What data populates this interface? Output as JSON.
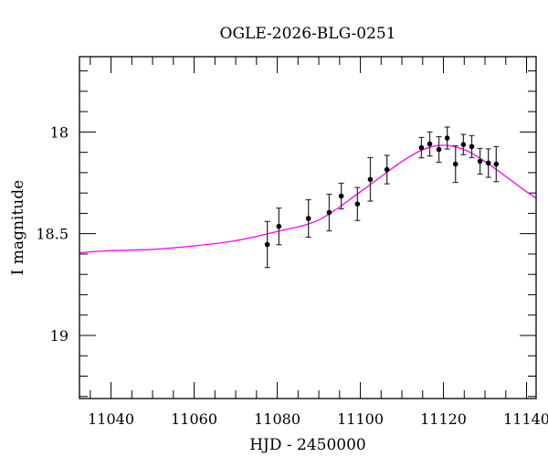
{
  "chart_data": {
    "type": "scatter",
    "title": "OGLE-2026-BLG-0251",
    "xlabel": "HJD - 2450000",
    "ylabel": "I magnitude",
    "xlim": [
      11032.4,
      11142.3
    ],
    "ylim": [
      17.63,
      19.31
    ],
    "y_inverted": true,
    "x_ticks": [
      11040,
      11060,
      11080,
      11100,
      11120,
      11140
    ],
    "x_tick_labels": [
      "11040",
      "11060",
      "11080",
      "11100",
      "11120",
      "11140"
    ],
    "y_ticks": [
      18,
      18.5,
      19
    ],
    "y_tick_labels": [
      "18",
      "18.5",
      "19"
    ],
    "grid": false,
    "series": [
      {
        "kind": "points-with-errorbars",
        "color": "#000000",
        "x": [
          11077.6,
          11080.4,
          11087.5,
          11092.5,
          11095.4,
          11099.3,
          11102.4,
          11106.4,
          11114.7,
          11116.7,
          11118.9,
          11120.9,
          11122.9,
          11124.8,
          11126.8,
          11128.8,
          11130.8,
          11132.7
        ],
        "y": [
          18.553,
          18.464,
          18.425,
          18.396,
          18.315,
          18.354,
          18.233,
          18.185,
          18.077,
          18.059,
          18.086,
          18.03,
          18.158,
          18.062,
          18.072,
          18.144,
          18.153,
          18.158
        ],
        "yerr": [
          0.113,
          0.09,
          0.092,
          0.09,
          0.063,
          0.081,
          0.107,
          0.07,
          0.05,
          0.059,
          0.063,
          0.054,
          0.09,
          0.05,
          0.054,
          0.063,
          0.07,
          0.086
        ]
      },
      {
        "kind": "model-curve",
        "color": "#ff00ff",
        "x": [
          11032,
          11040,
          11050,
          11060,
          11070,
          11080,
          11090,
          11100,
          11105,
          11110,
          11115,
          11120,
          11125,
          11130,
          11135,
          11140,
          11143
        ],
        "y": [
          18.594,
          18.583,
          18.577,
          18.56,
          18.534,
          18.489,
          18.432,
          18.294,
          18.219,
          18.145,
          18.087,
          18.065,
          18.087,
          18.145,
          18.219,
          18.294,
          18.334
        ]
      }
    ]
  }
}
